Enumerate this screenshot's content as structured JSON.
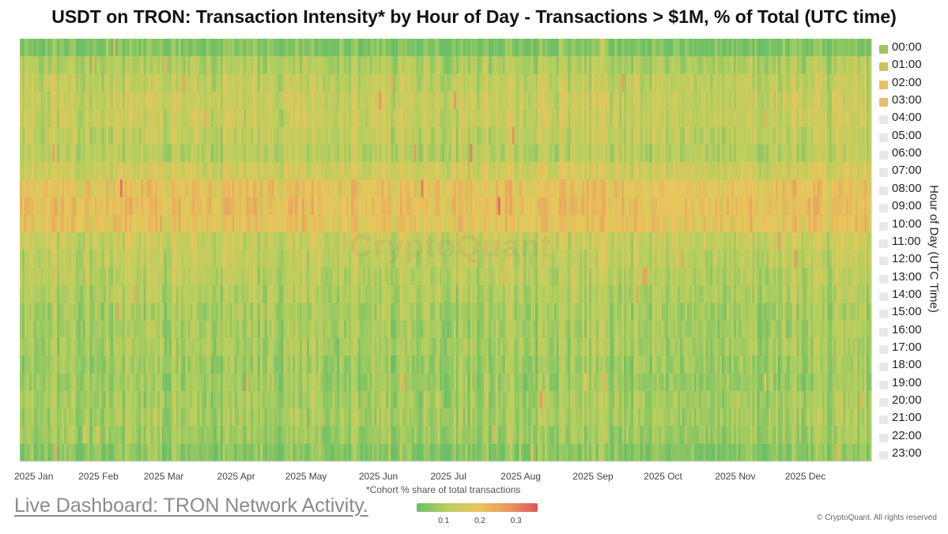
{
  "chart_data": {
    "type": "heatmap",
    "title": "USDT on TRON: Transaction Intensity* by Hour of Day - Transactions > $1M, % of Total (UTC time)",
    "xlabel": "",
    "ylabel": "Hour of Day (UTC Time)",
    "x_ticks": [
      "2025 Jan",
      "2025 Feb",
      "2025 Mar",
      "2025 Apr",
      "2025 May",
      "2025 Jun",
      "2025 Jul",
      "2025 Aug",
      "2025 Sep",
      "2025 Oct",
      "2025 Nov",
      "2025 Dec"
    ],
    "x_range": [
      "2025-01-01",
      "2025-12-31"
    ],
    "y_categories": [
      "00:00",
      "01:00",
      "02:00",
      "03:00",
      "04:00",
      "05:00",
      "06:00",
      "07:00",
      "08:00",
      "09:00",
      "10:00",
      "11:00",
      "12:00",
      "13:00",
      "14:00",
      "15:00",
      "16:00",
      "17:00",
      "18:00",
      "19:00",
      "20:00",
      "21:00",
      "22:00",
      "23:00"
    ],
    "hourly_typical_share": [
      0.06,
      0.11,
      0.13,
      0.14,
      0.14,
      0.13,
      0.12,
      0.15,
      0.19,
      0.2,
      0.19,
      0.14,
      0.13,
      0.12,
      0.11,
      0.1,
      0.1,
      0.1,
      0.09,
      0.09,
      0.1,
      0.1,
      0.09,
      0.07
    ],
    "color_scale": {
      "ticks": [
        "0.1",
        "0.2",
        "0.3"
      ],
      "min": 0.04,
      "max": 0.34,
      "colors": [
        "#6dbf67",
        "#b6cf5f",
        "#e8c65c",
        "#e89a5f",
        "#d9585a"
      ]
    },
    "legend_colors": [
      "#9cc55f",
      "#c9c55a",
      "#e6c262",
      "#e7be6e"
    ],
    "legend_inactive_color": "#e8e8e8",
    "legend_placement": "right",
    "watermark": "CryptoQuant",
    "note": "*Cohort % share of total transactions"
  },
  "footer": {
    "dashboard_link": "Live Dashboard: TRON Network Activity.",
    "copyright": "© CryptoQuant. All rights reserved"
  }
}
